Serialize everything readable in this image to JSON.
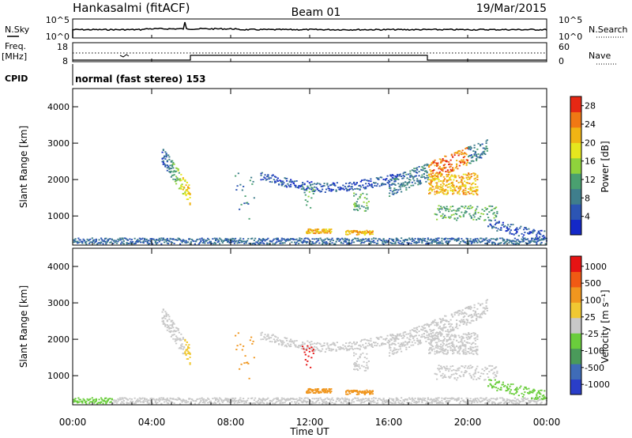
{
  "header": {
    "station": "Hankasalmi (fitACF)",
    "beam": "Beam 01",
    "date": "19/Mar/2015"
  },
  "params": {
    "nsky_label": "N.Sky",
    "nsearch_label": "N.Search",
    "freq_label": "Freq.",
    "freq_unit": "[MHz]",
    "nave_label": "Nave",
    "cpid_label": "CPID",
    "cpid_value": "normal (fast stereo) 153",
    "nsky_ticks": [
      "10^5",
      "10^0"
    ],
    "nsearch_ticks": [
      "10^5",
      "10^0"
    ],
    "freq_ticks": [
      "18",
      "8"
    ],
    "nave_ticks": [
      "60",
      "0"
    ]
  },
  "colors": {
    "power": [
      "#1428c8",
      "#2c55b4",
      "#3f7e8c",
      "#4aa070",
      "#8fd23c",
      "#e6e61e",
      "#f0b414",
      "#f07814",
      "#e62814"
    ],
    "velocity": [
      "#2a3ec8",
      "#3f6cb8",
      "#4a9a5a",
      "#6acd3c",
      "#c8c8c8",
      "#f0c832",
      "#f0961e",
      "#f05a14",
      "#e61414"
    ]
  },
  "chart_data": [
    {
      "type": "heatmap",
      "panel": "power",
      "xlabel": "",
      "ylabel": "Slant Range [km]",
      "xlim": [
        0,
        24
      ],
      "ylim": [
        200,
        4500
      ],
      "yticks": [
        "1000",
        "2000",
        "3000",
        "4000"
      ],
      "colorbar_label": "Power [dB]",
      "colorbar_ticks": [
        "4",
        "8",
        "12",
        "16",
        "20",
        "24",
        "28"
      ],
      "colorbar_range": [
        0,
        30
      ]
    },
    {
      "type": "heatmap",
      "panel": "velocity",
      "xlabel": "Time UT",
      "ylabel": "Slant Range [km]",
      "xlim": [
        0,
        24
      ],
      "ylim": [
        200,
        4500
      ],
      "xticks": [
        "00:00",
        "04:00",
        "08:00",
        "12:00",
        "16:00",
        "20:00",
        "00:00"
      ],
      "yticks": [
        "1000",
        "2000",
        "3000",
        "4000"
      ],
      "colorbar_label": "Velocity [m s⁻¹]",
      "colorbar_ticks": [
        "1000",
        "500",
        "100",
        "25",
        "-25",
        "-100",
        "-500",
        "-1000"
      ]
    }
  ]
}
